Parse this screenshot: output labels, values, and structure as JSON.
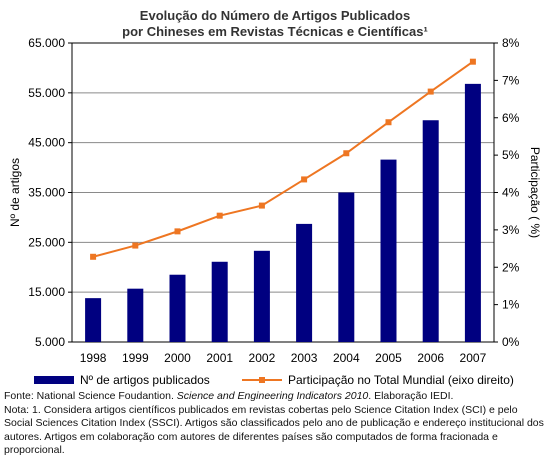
{
  "chart_data": {
    "type": "bar+line",
    "title_line1": "Evolução do Número de Artigos Publicados",
    "title_line2": "por Chineses em Revistas Técnicas e Científicas¹",
    "ylabel_left": "Nº de artigos",
    "ylabel_right": "Participação ( %)",
    "categories": [
      "1998",
      "1999",
      "2000",
      "2001",
      "2002",
      "2003",
      "2004",
      "2005",
      "2006",
      "2007"
    ],
    "y_left_ticks": [
      "65.000",
      "55.000",
      "45.000",
      "35.000",
      "25.000",
      "15.000",
      "5.000"
    ],
    "y_right_ticks": [
      "8%",
      "7%",
      "6%",
      "5%",
      "4%",
      "3%",
      "2%",
      "1%",
      "0%"
    ],
    "ylim_left": [
      5000,
      65000
    ],
    "ylim_right": [
      0,
      8
    ],
    "grid": "horizontal gridlines at each left-axis tick",
    "series": [
      {
        "name": "Nº de artigos publicados",
        "type": "bar",
        "axis": "left",
        "color": "#000080",
        "values": [
          13800,
          15700,
          18500,
          21100,
          23300,
          28700,
          35000,
          41600,
          49500,
          56800
        ]
      },
      {
        "name": "Participação no Total Mundial (eixo direito)",
        "type": "line",
        "axis": "right",
        "color": "#ee7622",
        "values": [
          2.28,
          2.58,
          2.96,
          3.38,
          3.65,
          4.35,
          5.05,
          5.88,
          6.7,
          7.5
        ]
      }
    ],
    "legend_position": "bottom"
  },
  "notes": {
    "source_prefix": "Fonte: National Science Foudantion. ",
    "source_italic": "Science and Engineering Indicators 2010",
    "source_suffix": ". Elaboração IEDI.",
    "note_line": "Nota: 1. Considera artigos científicos publicados em revistas cobertas pelo Science Citation Index (SCI) e pelo Social Sciences Citation Index (SSCI). Artigos são classificados pelo ano de publicação e endereço institucional dos autores. Artigos em colaboração com autores de diferentes países são computados de forma fracionada e proporcional."
  }
}
